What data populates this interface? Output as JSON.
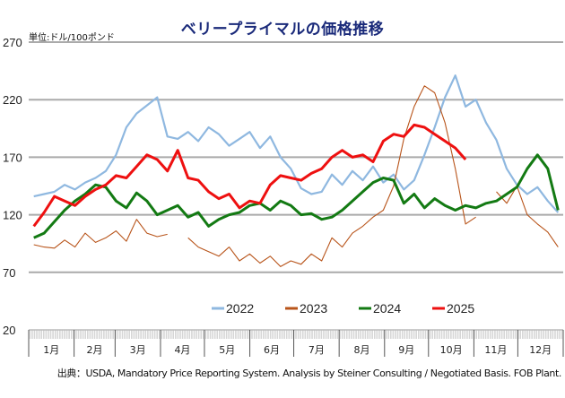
{
  "chart_data": {
    "type": "line",
    "title": "ベリープライマルの価格推移",
    "unit_label": "単位:ドル/100ポンド",
    "xlabel": "",
    "ylabel": "",
    "ylim": [
      20,
      270
    ],
    "yticks": [
      20,
      70,
      120,
      170,
      220,
      270
    ],
    "grid": true,
    "categories": [
      "1月",
      "2月",
      "3月",
      "4月",
      "5月",
      "6月",
      "7月",
      "8月",
      "9月",
      "10月",
      "11月",
      "12月"
    ],
    "x_unit": "week",
    "x_count": 52,
    "legend_position": "bottom-center",
    "series": [
      {
        "name": "2022",
        "color": "#8fb8e0",
        "values": [
          136,
          138,
          140,
          146,
          142,
          148,
          152,
          158,
          172,
          196,
          208,
          215,
          222,
          188,
          186,
          192,
          184,
          196,
          190,
          180,
          186,
          192,
          178,
          188,
          170,
          160,
          143,
          138,
          140,
          155,
          146,
          158,
          150,
          162,
          148,
          155,
          142,
          150,
          172,
          196,
          222,
          241,
          214,
          220,
          200,
          185,
          160,
          146,
          138,
          144,
          132,
          122
        ]
      },
      {
        "name": "2023",
        "color": "#b8541a",
        "values": [
          94,
          92,
          91,
          98,
          92,
          104,
          96,
          100,
          106,
          97,
          116,
          104,
          101,
          103,
          null,
          100,
          92,
          88,
          84,
          92,
          80,
          86,
          78,
          84,
          75,
          80,
          77,
          86,
          80,
          100,
          92,
          104,
          110,
          118,
          124,
          145,
          186,
          214,
          232,
          226,
          200,
          160,
          112,
          118,
          null,
          140,
          130,
          145,
          120,
          112,
          105,
          92
        ]
      },
      {
        "name": "2024",
        "color": "#137a13",
        "values": [
          100,
          104,
          114,
          124,
          132,
          138,
          146,
          144,
          132,
          126,
          139,
          132,
          120,
          124,
          128,
          118,
          122,
          110,
          116,
          120,
          122,
          128,
          130,
          124,
          132,
          128,
          120,
          121,
          116,
          118,
          124,
          132,
          140,
          148,
          152,
          150,
          130,
          138,
          126,
          134,
          128,
          124,
          128,
          126,
          130,
          132,
          138,
          144,
          160,
          172,
          160,
          124
        ]
      },
      {
        "name": "2025",
        "color": "#ee1010",
        "values": [
          110,
          122,
          136,
          132,
          128,
          136,
          142,
          146,
          154,
          152,
          162,
          172,
          168,
          158,
          176,
          152,
          150,
          140,
          134,
          138,
          126,
          132,
          130,
          146,
          154,
          152,
          150,
          156,
          160,
          170,
          176,
          170,
          172,
          166,
          184,
          190,
          188,
          198,
          196,
          190,
          184,
          178,
          168
        ]
      }
    ]
  },
  "source_text": "出典：USDA, Mandatory Price Reporting System. Analysis by Steiner Consulting  / Negotiated Basis. FOB Plant."
}
